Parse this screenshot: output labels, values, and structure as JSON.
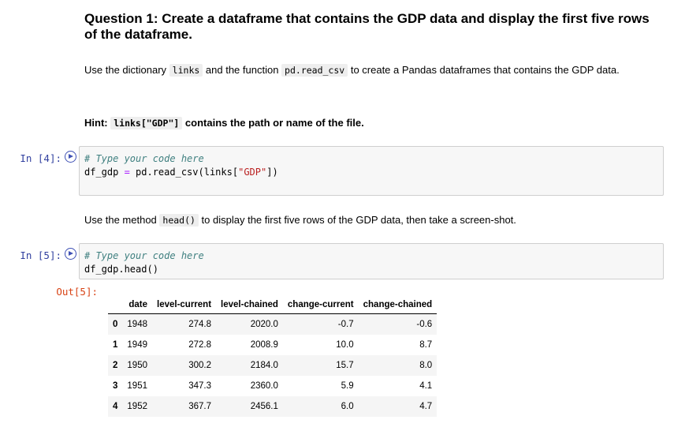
{
  "question": {
    "title": "Question 1: Create a dataframe that contains the GDP data and display the first five rows of the dataframe.",
    "para1": {
      "t1": "Use the dictionary ",
      "c1": "links",
      "t2": " and the function ",
      "c2": "pd.read_csv",
      "t3": " to create a Pandas dataframes that contains the GDP data."
    },
    "hint": {
      "t1": "Hint: ",
      "c1": "links[\"GDP\"]",
      "t2": " contains the path or name of the file."
    },
    "para2": {
      "t1": "Use the method ",
      "c1": "head()",
      "t2": " to display the first five rows of the GDP data, then take a screen-shot."
    }
  },
  "cell1": {
    "prompt": "In [4]:",
    "comment": "# Type your code here",
    "line2": {
      "lhs": "df_gdp ",
      "op": "=",
      "rhs": " pd.read_csv(links[",
      "str": "\"GDP\"",
      "end": "])"
    }
  },
  "cell2": {
    "prompt": "In [5]:",
    "comment": "# Type your code here",
    "line2": "df_gdp.head()",
    "out_prompt": "Out[5]:"
  },
  "table": {
    "columns": [
      "",
      "date",
      "level-current",
      "level-chained",
      "change-current",
      "change-chained"
    ],
    "rows": [
      [
        "0",
        "1948",
        "274.8",
        "2020.0",
        "-0.7",
        "-0.6"
      ],
      [
        "1",
        "1949",
        "272.8",
        "2008.9",
        "10.0",
        "8.7"
      ],
      [
        "2",
        "1950",
        "300.2",
        "2184.0",
        "15.7",
        "8.0"
      ],
      [
        "3",
        "1951",
        "347.3",
        "2360.0",
        "5.9",
        "4.1"
      ],
      [
        "4",
        "1952",
        "367.7",
        "2456.1",
        "6.0",
        "4.7"
      ]
    ]
  },
  "icons": {
    "run": "run-cell-icon"
  }
}
